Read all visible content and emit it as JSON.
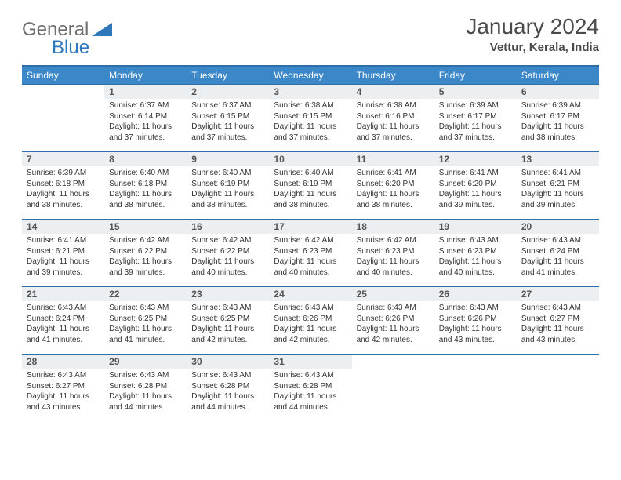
{
  "brand": {
    "part1": "General",
    "part2": "Blue",
    "color1": "#6f6f6f",
    "color2": "#2f77bb"
  },
  "title": "January 2024",
  "location": "Vettur, Kerala, India",
  "theme": {
    "header_bg": "#3b87c8",
    "header_text": "#ffffff",
    "row_border": "#2f6fa8",
    "daynum_bg": "#eceff1",
    "daynum_color": "#555555",
    "body_text": "#333333",
    "page_bg": "#ffffff"
  },
  "weekdays": [
    "Sunday",
    "Monday",
    "Tuesday",
    "Wednesday",
    "Thursday",
    "Friday",
    "Saturday"
  ],
  "first_weekday_offset": 1,
  "days": [
    {
      "n": 1,
      "sunrise": "6:37 AM",
      "sunset": "6:14 PM",
      "daylight": "11 hours and 37 minutes."
    },
    {
      "n": 2,
      "sunrise": "6:37 AM",
      "sunset": "6:15 PM",
      "daylight": "11 hours and 37 minutes."
    },
    {
      "n": 3,
      "sunrise": "6:38 AM",
      "sunset": "6:15 PM",
      "daylight": "11 hours and 37 minutes."
    },
    {
      "n": 4,
      "sunrise": "6:38 AM",
      "sunset": "6:16 PM",
      "daylight": "11 hours and 37 minutes."
    },
    {
      "n": 5,
      "sunrise": "6:39 AM",
      "sunset": "6:17 PM",
      "daylight": "11 hours and 37 minutes."
    },
    {
      "n": 6,
      "sunrise": "6:39 AM",
      "sunset": "6:17 PM",
      "daylight": "11 hours and 38 minutes."
    },
    {
      "n": 7,
      "sunrise": "6:39 AM",
      "sunset": "6:18 PM",
      "daylight": "11 hours and 38 minutes."
    },
    {
      "n": 8,
      "sunrise": "6:40 AM",
      "sunset": "6:18 PM",
      "daylight": "11 hours and 38 minutes."
    },
    {
      "n": 9,
      "sunrise": "6:40 AM",
      "sunset": "6:19 PM",
      "daylight": "11 hours and 38 minutes."
    },
    {
      "n": 10,
      "sunrise": "6:40 AM",
      "sunset": "6:19 PM",
      "daylight": "11 hours and 38 minutes."
    },
    {
      "n": 11,
      "sunrise": "6:41 AM",
      "sunset": "6:20 PM",
      "daylight": "11 hours and 38 minutes."
    },
    {
      "n": 12,
      "sunrise": "6:41 AM",
      "sunset": "6:20 PM",
      "daylight": "11 hours and 39 minutes."
    },
    {
      "n": 13,
      "sunrise": "6:41 AM",
      "sunset": "6:21 PM",
      "daylight": "11 hours and 39 minutes."
    },
    {
      "n": 14,
      "sunrise": "6:41 AM",
      "sunset": "6:21 PM",
      "daylight": "11 hours and 39 minutes."
    },
    {
      "n": 15,
      "sunrise": "6:42 AM",
      "sunset": "6:22 PM",
      "daylight": "11 hours and 39 minutes."
    },
    {
      "n": 16,
      "sunrise": "6:42 AM",
      "sunset": "6:22 PM",
      "daylight": "11 hours and 40 minutes."
    },
    {
      "n": 17,
      "sunrise": "6:42 AM",
      "sunset": "6:23 PM",
      "daylight": "11 hours and 40 minutes."
    },
    {
      "n": 18,
      "sunrise": "6:42 AM",
      "sunset": "6:23 PM",
      "daylight": "11 hours and 40 minutes."
    },
    {
      "n": 19,
      "sunrise": "6:43 AM",
      "sunset": "6:23 PM",
      "daylight": "11 hours and 40 minutes."
    },
    {
      "n": 20,
      "sunrise": "6:43 AM",
      "sunset": "6:24 PM",
      "daylight": "11 hours and 41 minutes."
    },
    {
      "n": 21,
      "sunrise": "6:43 AM",
      "sunset": "6:24 PM",
      "daylight": "11 hours and 41 minutes."
    },
    {
      "n": 22,
      "sunrise": "6:43 AM",
      "sunset": "6:25 PM",
      "daylight": "11 hours and 41 minutes."
    },
    {
      "n": 23,
      "sunrise": "6:43 AM",
      "sunset": "6:25 PM",
      "daylight": "11 hours and 42 minutes."
    },
    {
      "n": 24,
      "sunrise": "6:43 AM",
      "sunset": "6:26 PM",
      "daylight": "11 hours and 42 minutes."
    },
    {
      "n": 25,
      "sunrise": "6:43 AM",
      "sunset": "6:26 PM",
      "daylight": "11 hours and 42 minutes."
    },
    {
      "n": 26,
      "sunrise": "6:43 AM",
      "sunset": "6:26 PM",
      "daylight": "11 hours and 43 minutes."
    },
    {
      "n": 27,
      "sunrise": "6:43 AM",
      "sunset": "6:27 PM",
      "daylight": "11 hours and 43 minutes."
    },
    {
      "n": 28,
      "sunrise": "6:43 AM",
      "sunset": "6:27 PM",
      "daylight": "11 hours and 43 minutes."
    },
    {
      "n": 29,
      "sunrise": "6:43 AM",
      "sunset": "6:28 PM",
      "daylight": "11 hours and 44 minutes."
    },
    {
      "n": 30,
      "sunrise": "6:43 AM",
      "sunset": "6:28 PM",
      "daylight": "11 hours and 44 minutes."
    },
    {
      "n": 31,
      "sunrise": "6:43 AM",
      "sunset": "6:28 PM",
      "daylight": "11 hours and 44 minutes."
    }
  ],
  "labels": {
    "sunrise": "Sunrise:",
    "sunset": "Sunset:",
    "daylight": "Daylight:"
  }
}
